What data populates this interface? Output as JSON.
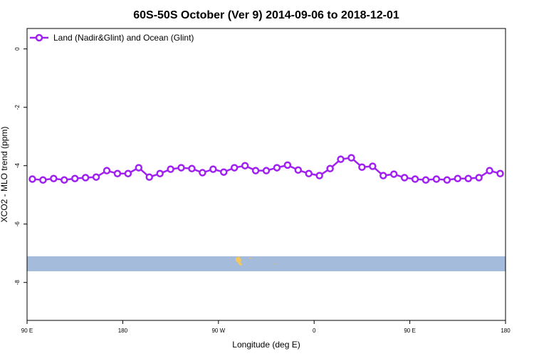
{
  "chart_data": {
    "type": "line",
    "title": "60S-50S October (Ver 9)   2014-09-06 to 2018-12-01",
    "x_label": "Longitude (deg E)",
    "y_label": "XCO2 - MLO trend (ppm)",
    "x": [
      -265,
      -255,
      -245,
      -235,
      -225,
      -215,
      -205,
      -195,
      -185,
      -175,
      -165,
      -155,
      -145,
      -135,
      -125,
      -115,
      -105,
      -95,
      -85,
      -75,
      -65,
      -55,
      -45,
      -35,
      -25,
      -15,
      -5,
      5,
      15,
      25,
      35,
      45,
      55,
      65,
      75,
      85,
      95,
      105,
      115,
      125,
      135,
      145,
      155,
      165,
      175
    ],
    "series": [
      {
        "name": "Land (Nadir&Glint) and Ocean (Glint)",
        "color": "#a020f0",
        "values": [
          -4.46,
          -4.49,
          -4.44,
          -4.49,
          -4.44,
          -4.41,
          -4.39,
          -4.17,
          -4.27,
          -4.27,
          -4.07,
          -4.39,
          -4.27,
          -4.12,
          -4.07,
          -4.1,
          -4.24,
          -4.12,
          -4.22,
          -4.07,
          -4.0,
          -4.17,
          -4.17,
          -4.07,
          -3.98,
          -4.15,
          -4.27,
          -4.34,
          -4.1,
          -3.78,
          -3.73,
          -4.05,
          -4.02,
          -4.34,
          -4.29,
          -4.41,
          -4.46,
          -4.49,
          -4.46,
          -4.49,
          -4.44,
          -4.44,
          -4.41,
          -4.17,
          -4.27
        ]
      }
    ],
    "xlim": [
      -270,
      180
    ],
    "xticks": [
      {
        "value": -270,
        "label": "90 E"
      },
      {
        "value": -180,
        "label": "180"
      },
      {
        "value": -90,
        "label": "90 W"
      },
      0,
      {
        "value": 90,
        "label": "90 E"
      },
      180
    ],
    "ylim": [
      -9.3,
      0.7
    ],
    "yticks": [
      0,
      -2,
      -4,
      -6,
      -8
    ],
    "legend": "top-left"
  }
}
